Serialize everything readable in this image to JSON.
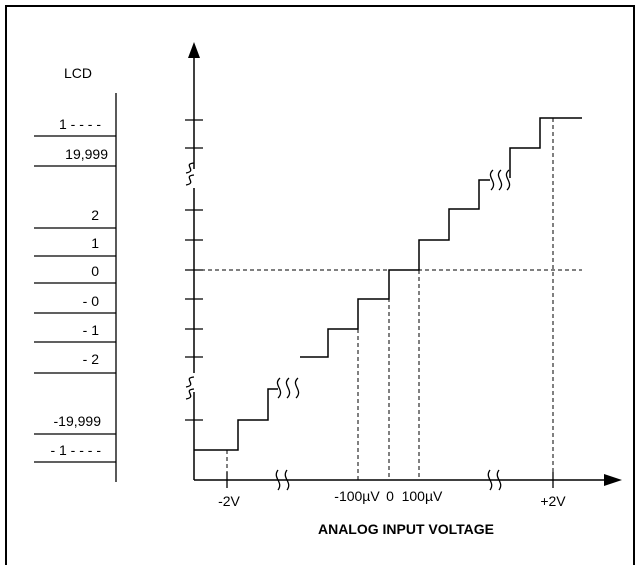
{
  "lcd_header": "LCD",
  "lcd_readings": [
    "1 - - - -",
    "19,999",
    "2",
    "1",
    "0",
    "- 0",
    "- 1",
    "- 2",
    "-19,999",
    "- 1 - - - -"
  ],
  "x_axis": {
    "title": "ANALOG INPUT VOLTAGE",
    "tick_labels": [
      "-2V",
      "-100µV",
      "0",
      "100µV",
      "+2V"
    ]
  },
  "colors": {
    "ink": "#000000",
    "background": "#ffffff"
  }
}
